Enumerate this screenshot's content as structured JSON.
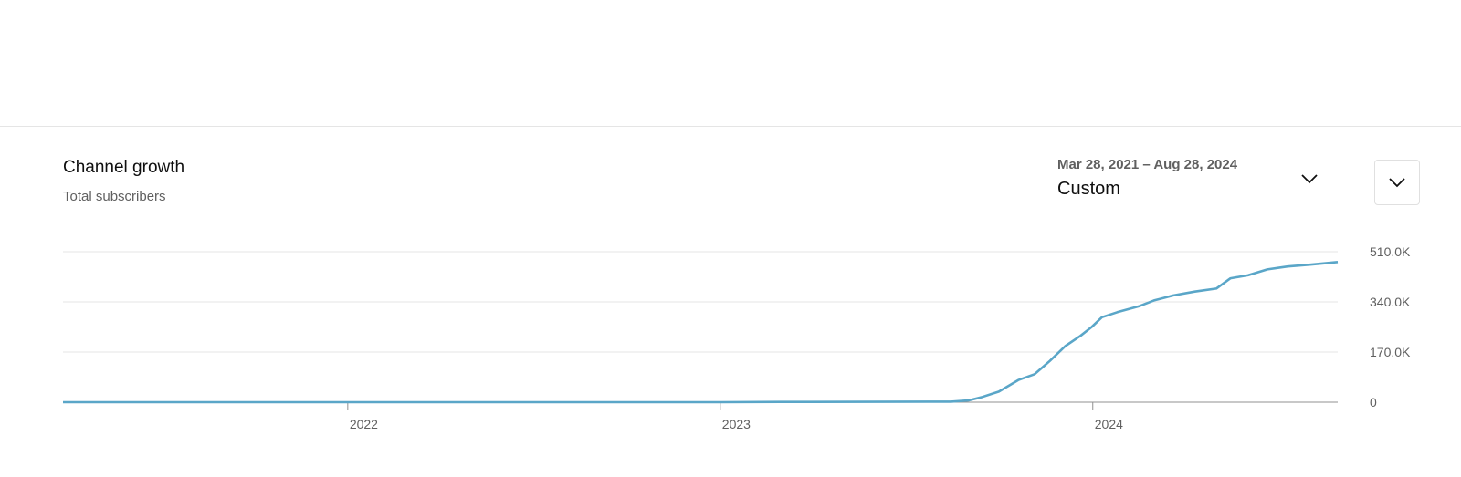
{
  "card": {
    "title": "Channel growth",
    "subtitle": "Total subscribers"
  },
  "date_picker": {
    "range": "Mar 28, 2021 – Aug 28, 2024",
    "preset": "Custom",
    "icon": "chevron-down-icon"
  },
  "expand_button": {
    "icon": "chevron-down-icon"
  },
  "chart_data": {
    "type": "line",
    "title": "",
    "xlabel": "",
    "ylabel": "",
    "x_range": [
      "2021-03-28",
      "2024-08-28"
    ],
    "x_ticks": [
      {
        "date": "2022-01-01",
        "label": "2022"
      },
      {
        "date": "2023-01-01",
        "label": "2023"
      },
      {
        "date": "2024-01-01",
        "label": "2024"
      }
    ],
    "ylim": [
      0,
      510000
    ],
    "y_ticks": [
      {
        "value": 0,
        "label": "0"
      },
      {
        "value": 170000,
        "label": "170.0K"
      },
      {
        "value": 340000,
        "label": "340.0K"
      },
      {
        "value": 510000,
        "label": "510.0K"
      }
    ],
    "grid": true,
    "color": "#5aa6c8",
    "series": [
      {
        "points": [
          [
            "2021-03-28",
            0
          ],
          [
            "2023-01-01",
            0
          ],
          [
            "2023-03-01",
            1000
          ],
          [
            "2023-08-15",
            2000
          ],
          [
            "2023-09-01",
            6000
          ],
          [
            "2023-09-15",
            18000
          ],
          [
            "2023-10-01",
            36000
          ],
          [
            "2023-10-20",
            75000
          ],
          [
            "2023-11-05",
            95000
          ],
          [
            "2023-11-20",
            140000
          ],
          [
            "2023-12-05",
            190000
          ],
          [
            "2023-12-20",
            225000
          ],
          [
            "2023-12-31",
            255000
          ],
          [
            "2024-01-10",
            288000
          ],
          [
            "2024-01-25",
            305000
          ],
          [
            "2024-02-15",
            325000
          ],
          [
            "2024-03-01",
            345000
          ],
          [
            "2024-03-20",
            362000
          ],
          [
            "2024-04-10",
            375000
          ],
          [
            "2024-05-01",
            385000
          ],
          [
            "2024-05-15",
            420000
          ],
          [
            "2024-06-01",
            430000
          ],
          [
            "2024-06-20",
            450000
          ],
          [
            "2024-07-10",
            460000
          ],
          [
            "2024-08-01",
            466000
          ],
          [
            "2024-08-28",
            475000
          ]
        ]
      }
    ]
  }
}
